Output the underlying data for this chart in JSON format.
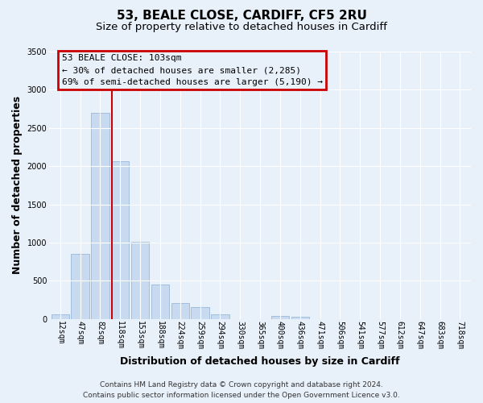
{
  "title": "53, BEALE CLOSE, CARDIFF, CF5 2RU",
  "subtitle": "Size of property relative to detached houses in Cardiff",
  "xlabel": "Distribution of detached houses by size in Cardiff",
  "ylabel": "Number of detached properties",
  "bar_color": "#c8daf0",
  "bar_edgecolor": "#9ab8d8",
  "background_color": "#e8f0fa",
  "plot_bg_color": "#e8f0fa",
  "grid_color": "#ffffff",
  "categories": [
    "12sqm",
    "47sqm",
    "82sqm",
    "118sqm",
    "153sqm",
    "188sqm",
    "224sqm",
    "259sqm",
    "294sqm",
    "330sqm",
    "365sqm",
    "400sqm",
    "436sqm",
    "471sqm",
    "506sqm",
    "541sqm",
    "577sqm",
    "612sqm",
    "647sqm",
    "683sqm",
    "718sqm"
  ],
  "values": [
    55,
    850,
    2700,
    2060,
    1010,
    450,
    210,
    150,
    55,
    0,
    0,
    40,
    25,
    0,
    0,
    0,
    0,
    0,
    0,
    0,
    0
  ],
  "ylim": [
    0,
    3500
  ],
  "yticks": [
    0,
    500,
    1000,
    1500,
    2000,
    2500,
    3000,
    3500
  ],
  "annotation_line1": "53 BEALE CLOSE: 103sqm",
  "annotation_line2": "← 30% of detached houses are smaller (2,285)",
  "annotation_line3": "69% of semi-detached houses are larger (5,190) →",
  "footer1": "Contains HM Land Registry data © Crown copyright and database right 2024.",
  "footer2": "Contains public sector information licensed under the Open Government Licence v3.0.",
  "box_color": "#cc0000",
  "red_line_color": "#cc0000",
  "title_fontsize": 11,
  "subtitle_fontsize": 9.5,
  "axis_label_fontsize": 9,
  "tick_fontsize": 7,
  "annotation_fontsize": 8,
  "footer_fontsize": 6.5
}
